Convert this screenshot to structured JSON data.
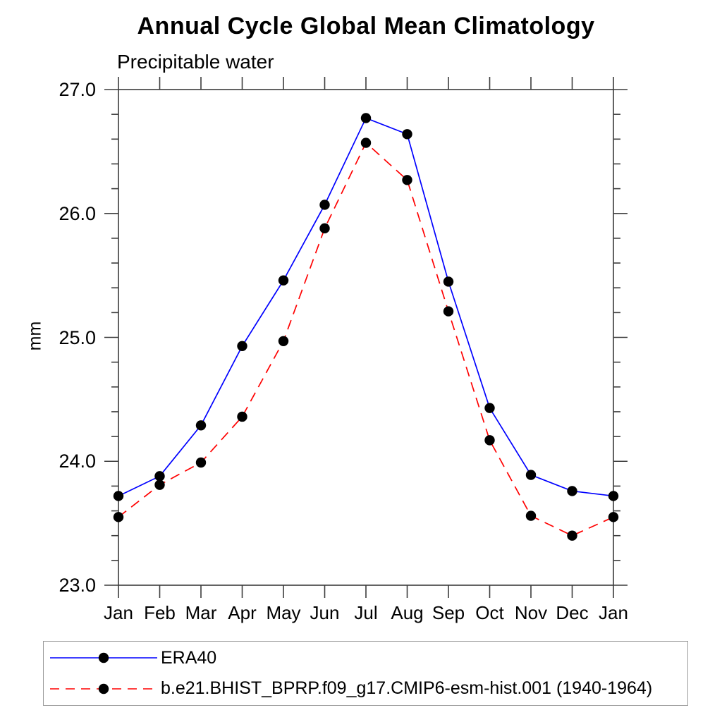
{
  "chart_data": {
    "type": "line",
    "title": "Annual Cycle Global Mean Climatology",
    "subtitle": "Precipitable water",
    "ylabel": "mm",
    "xlabel": "",
    "categories": [
      "Jan",
      "Feb",
      "Mar",
      "Apr",
      "May",
      "Jun",
      "Jul",
      "Aug",
      "Sep",
      "Oct",
      "Nov",
      "Dec",
      "Jan"
    ],
    "ylim": [
      23.0,
      27.0
    ],
    "ytick_major_step": 1.0,
    "ytick_minor_step": 0.2,
    "ytick_labels": [
      "23.0",
      "24.0",
      "25.0",
      "26.0",
      "27.0"
    ],
    "grid": false,
    "legend_position": "bottom",
    "series": [
      {
        "name": "ERA40",
        "color": "#0000ff",
        "line_style": "solid",
        "marker": "filled-circle",
        "marker_color": "#000000",
        "values": [
          23.72,
          23.88,
          24.29,
          24.93,
          25.46,
          26.07,
          26.77,
          26.64,
          25.45,
          24.43,
          23.89,
          23.76,
          23.72
        ]
      },
      {
        "name": "b.e21.BHIST_BPRP.f09_g17.CMIP6-esm-hist.001 (1940-1964)",
        "color": "#ff0000",
        "line_style": "dashed",
        "marker": "filled-circle",
        "marker_color": "#000000",
        "values": [
          23.55,
          23.81,
          23.99,
          24.36,
          24.97,
          25.88,
          26.57,
          26.27,
          25.21,
          24.17,
          23.56,
          23.4,
          23.55
        ]
      }
    ],
    "colors": {
      "axis": "#3c3c3c",
      "tick": "#3c3c3c",
      "text": "#000000",
      "legend_border": "#9a9a9a"
    }
  }
}
